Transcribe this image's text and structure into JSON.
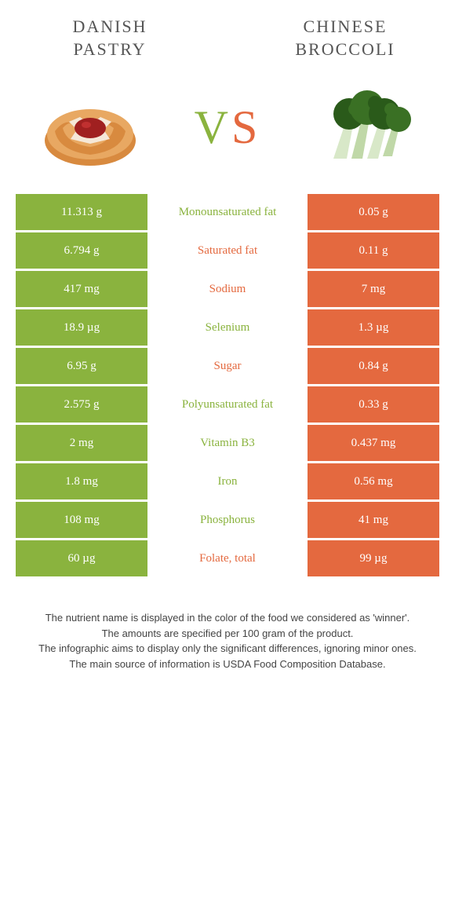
{
  "food_left": {
    "title_line1": "DANISH",
    "title_line2": "PASTRY"
  },
  "food_right": {
    "title_line1": "CHINESE",
    "title_line2": "BROCCOLI"
  },
  "colors": {
    "green": "#8ab33e",
    "orange": "#e4693f"
  },
  "rows": [
    {
      "left": "11.313 g",
      "label": "Monounsaturated fat",
      "right": "0.05 g",
      "winner": "left"
    },
    {
      "left": "6.794 g",
      "label": "Saturated fat",
      "right": "0.11 g",
      "winner": "right"
    },
    {
      "left": "417 mg",
      "label": "Sodium",
      "right": "7 mg",
      "winner": "right"
    },
    {
      "left": "18.9 µg",
      "label": "Selenium",
      "right": "1.3 µg",
      "winner": "left"
    },
    {
      "left": "6.95 g",
      "label": "Sugar",
      "right": "0.84 g",
      "winner": "right"
    },
    {
      "left": "2.575 g",
      "label": "Polyunsaturated fat",
      "right": "0.33 g",
      "winner": "left"
    },
    {
      "left": "2 mg",
      "label": "Vitamin B3",
      "right": "0.437 mg",
      "winner": "left"
    },
    {
      "left": "1.8 mg",
      "label": "Iron",
      "right": "0.56 mg",
      "winner": "left"
    },
    {
      "left": "108 mg",
      "label": "Phosphorus",
      "right": "41 mg",
      "winner": "left"
    },
    {
      "left": "60 µg",
      "label": "Folate, total",
      "right": "99 µg",
      "winner": "right"
    }
  ],
  "footer": {
    "line1": "The nutrient name is displayed in the color of the food we considered as 'winner'.",
    "line2": "The amounts are specified per 100 gram of the product.",
    "line3": "The infographic aims to display only the significant differences, ignoring minor ones.",
    "line4": "The main source of information is USDA Food Composition Database."
  }
}
